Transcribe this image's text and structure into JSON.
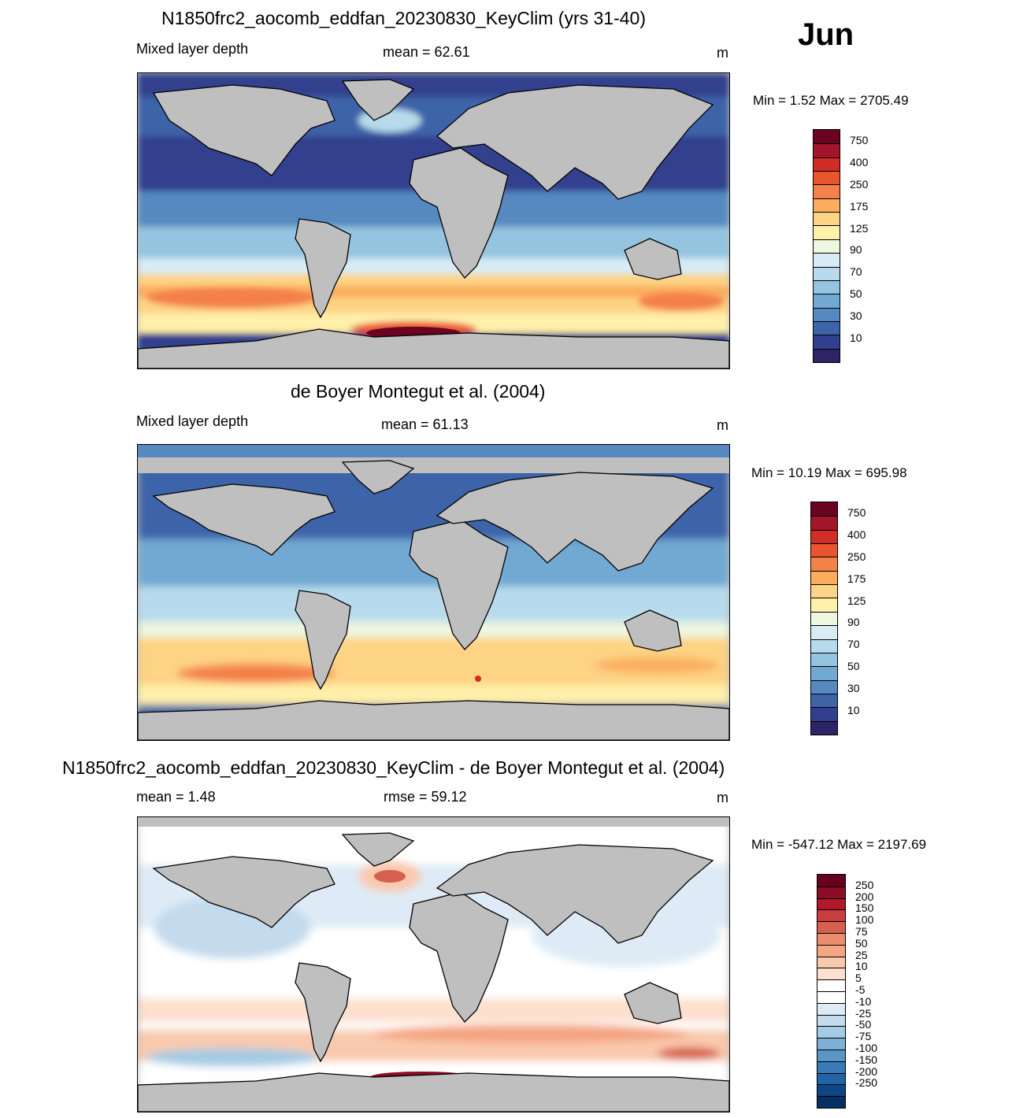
{
  "month": "Jun",
  "panels": [
    {
      "title": "N1850frc2_aocomb_eddfan_20230830_KeyClim (yrs 31-40)",
      "left_label": "Mixed layer depth",
      "center_label": "mean =  62.61",
      "units": "m",
      "minmax": "Min =    1.52 Max = 2705.49"
    },
    {
      "title": "de Boyer Montegut et al. (2004)",
      "left_label": "Mixed layer depth",
      "center_label": "mean =  61.13",
      "units": "m",
      "minmax": "Min =  10.19 Max = 695.98"
    },
    {
      "title": "N1850frc2_aocomb_eddfan_20230830_KeyClim - de Boyer Montegut et al. (2004)",
      "left_label": "mean =    1.48",
      "center_label": "rmse =  59.12",
      "units": "m",
      "minmax": "Min = -547.12 Max = 2197.69"
    }
  ],
  "colorbars": {
    "mld": {
      "colors": [
        "#6a0220",
        "#a1162a",
        "#cf2d26",
        "#e8552e",
        "#f4804a",
        "#fbad5d",
        "#fdd384",
        "#fff0aa",
        "#eef7df",
        "#d7ecf4",
        "#b7dbec",
        "#94c4e0",
        "#71a9d2",
        "#5589c0",
        "#3e64a8",
        "#323f8e",
        "#2d2466"
      ],
      "labels": [
        "750",
        "400",
        "250",
        "175",
        "125",
        "90",
        "70",
        "50",
        "30",
        "10"
      ]
    },
    "diff": {
      "colors": [
        "#67001f",
        "#8e0c26",
        "#b2182b",
        "#c83d3d",
        "#d6604d",
        "#ea8e72",
        "#f4a582",
        "#f9c9ad",
        "#fde0ce",
        "#ffffff",
        "#ffffff",
        "#deebf6",
        "#c4dbed",
        "#a6cbe4",
        "#7fb1d6",
        "#5896c7",
        "#3b7ab8",
        "#2164a6",
        "#0f4688",
        "#053061"
      ],
      "labels": [
        "250",
        "200",
        "150",
        "100",
        "75",
        "50",
        "25",
        "10",
        "5",
        "-5",
        "-10",
        "-25",
        "-50",
        "-75",
        "-100",
        "-150",
        "-200",
        "-250"
      ]
    }
  },
  "map_colors": {
    "land": "#bfbfbf",
    "coast": "#000000",
    "deep_blue": "#323f8e",
    "mid_blue": "#5589c0",
    "light_blue": "#b7dbec",
    "cream": "#fff0aa",
    "orange": "#f4804a",
    "dark_red": "#6a0220",
    "diff_white": "#ffffff",
    "diff_lightblue": "#c4dbed",
    "diff_pink": "#f9c9ad",
    "diff_red": "#d6604d"
  }
}
